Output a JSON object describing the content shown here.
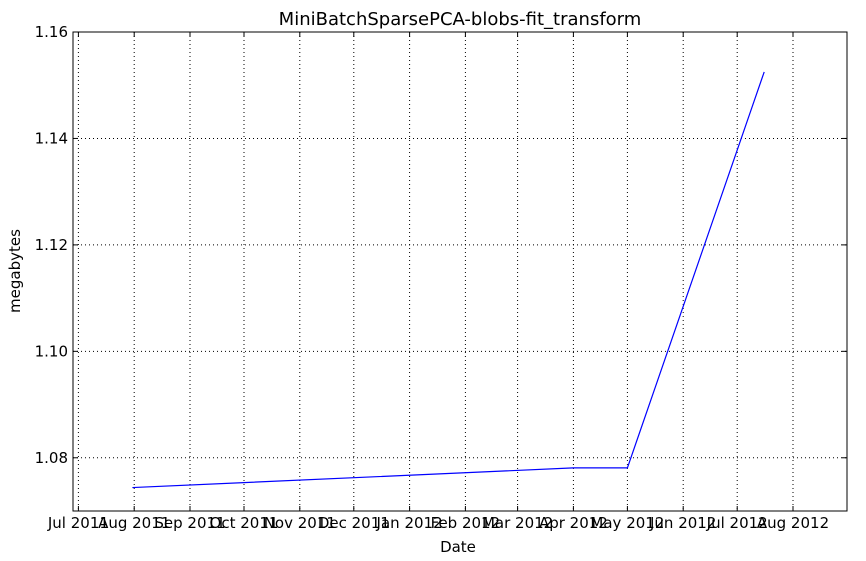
{
  "chart_data": {
    "type": "line",
    "title": "MiniBatchSparsePCA-blobs-fit_transform",
    "xlabel": "Date",
    "ylabel": "megabytes",
    "xlim": [
      "2011-06-28",
      "2012-08-31"
    ],
    "ylim": [
      1.07,
      1.16
    ],
    "grid": true,
    "x_tick_labels": [
      "Jul 2011",
      "Aug 2011",
      "Sep 2011",
      "Oct 2011",
      "Nov 2011",
      "Dec 2011",
      "Jan 2012",
      "Feb 2012",
      "Mar 2012",
      "Apr 2012",
      "May 2012",
      "Jun 2012",
      "Jul 2012",
      "Aug 2012"
    ],
    "x_tick_values": [
      "2011-07-01",
      "2011-08-01",
      "2011-09-01",
      "2011-10-01",
      "2011-11-01",
      "2011-12-01",
      "2012-01-01",
      "2012-02-01",
      "2012-03-01",
      "2012-04-01",
      "2012-05-01",
      "2012-06-01",
      "2012-07-01",
      "2012-08-01"
    ],
    "y_tick_labels": [
      "1.08",
      "1.10",
      "1.12",
      "1.14",
      "1.16"
    ],
    "y_tick_values": [
      1.08,
      1.1,
      1.12,
      1.14,
      1.16
    ],
    "series": [
      {
        "color": "#0000ff",
        "x": [
          "2011-07-31",
          "2012-04-01",
          "2012-05-01",
          "2012-07-16"
        ],
        "y": [
          1.0744,
          1.0781,
          1.0781,
          1.1525
        ]
      }
    ]
  }
}
